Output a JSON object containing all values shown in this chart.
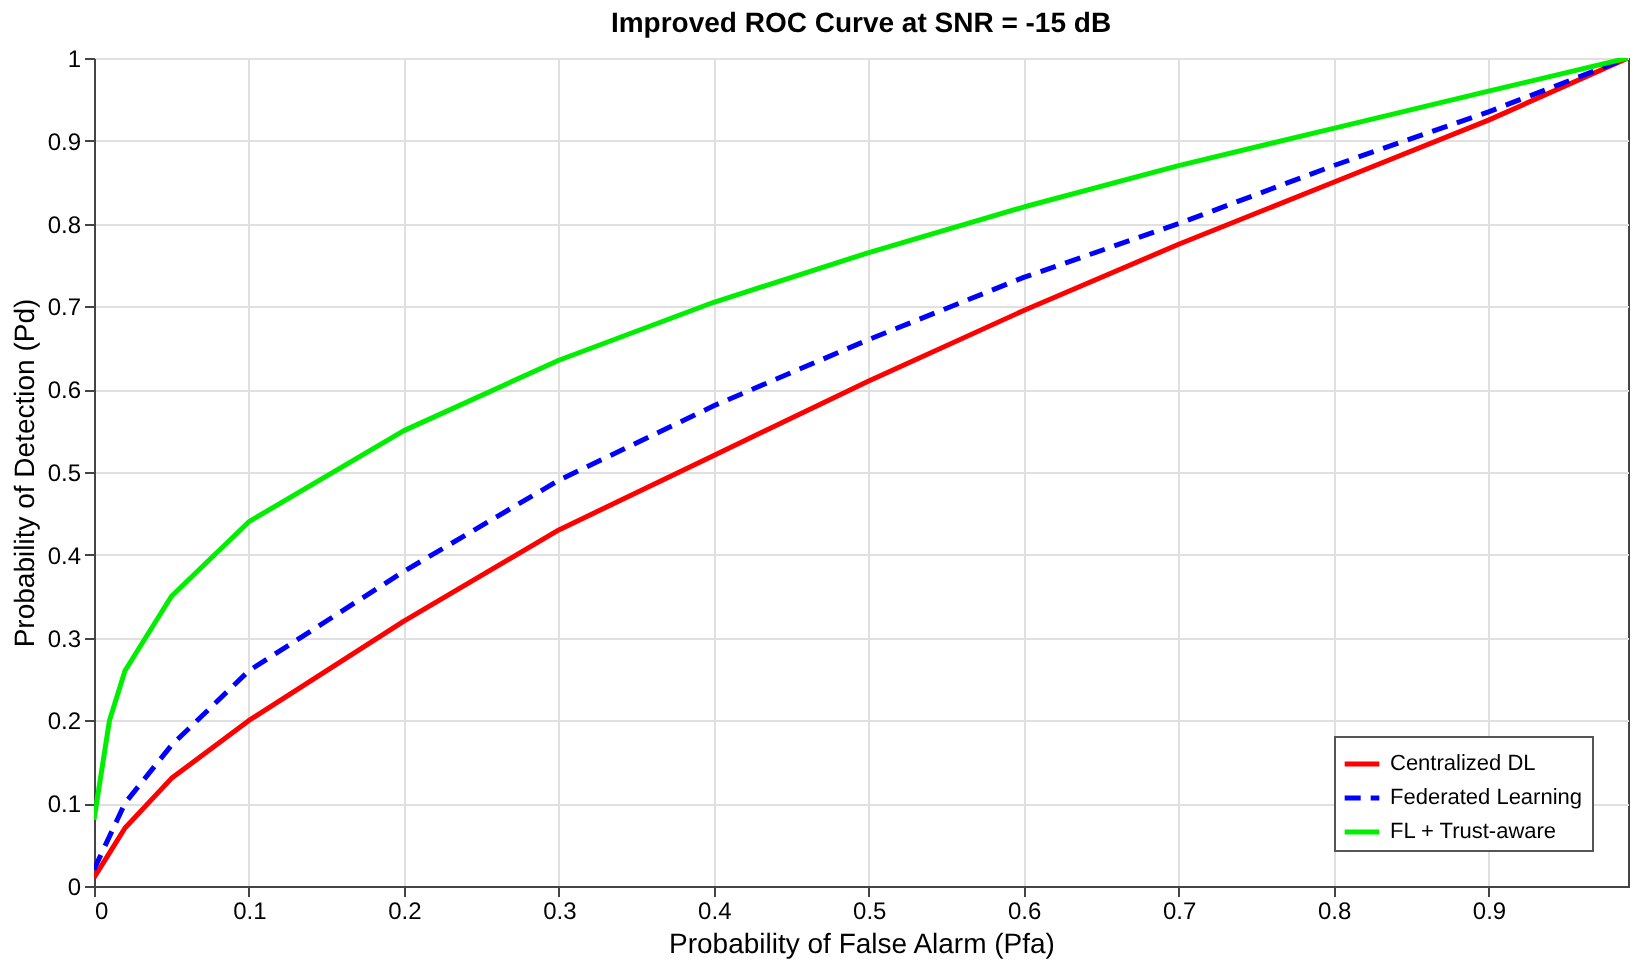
{
  "chart_data": {
    "type": "line",
    "title": "Improved ROC Curve at SNR = -15 dB",
    "xlabel": "Probability of False Alarm (Pfa)",
    "ylabel": "Probability of Detection (Pd)",
    "x": [
      0,
      0.01,
      0.02,
      0.05,
      0.1,
      0.2,
      0.3,
      0.4,
      0.5,
      0.6,
      0.7,
      0.8,
      0.9,
      0.99
    ],
    "series": [
      {
        "name": "Centralized DL",
        "color": "#ff0000",
        "line_style": "solid",
        "values": [
          0.01,
          0.04,
          0.07,
          0.13,
          0.2,
          0.32,
          0.43,
          0.52,
          0.61,
          0.695,
          0.775,
          0.85,
          0.925,
          1.0
        ]
      },
      {
        "name": "Federated Learning",
        "color": "#0000ff",
        "line_style": "dashed",
        "values": [
          0.02,
          0.06,
          0.1,
          0.17,
          0.26,
          0.38,
          0.49,
          0.58,
          0.66,
          0.735,
          0.8,
          0.87,
          0.935,
          1.0
        ]
      },
      {
        "name": "FL + Trust-aware",
        "color": "#00ee00",
        "line_style": "solid",
        "values": [
          0.08,
          0.2,
          0.26,
          0.35,
          0.44,
          0.55,
          0.635,
          0.705,
          0.765,
          0.82,
          0.87,
          0.915,
          0.96,
          1.0
        ]
      }
    ],
    "xlim": [
      0,
      0.99
    ],
    "xticks": [
      0,
      0.1,
      0.2,
      0.3,
      0.4,
      0.5,
      0.6,
      0.7,
      0.8,
      0.9
    ],
    "ylim": [
      0,
      1
    ],
    "yticks": [
      0,
      0.1,
      0.2,
      0.3,
      0.4,
      0.5,
      0.6,
      0.7,
      0.8,
      0.9,
      1
    ],
    "grid": true,
    "legend": "bottom right",
    "marker": "none"
  }
}
